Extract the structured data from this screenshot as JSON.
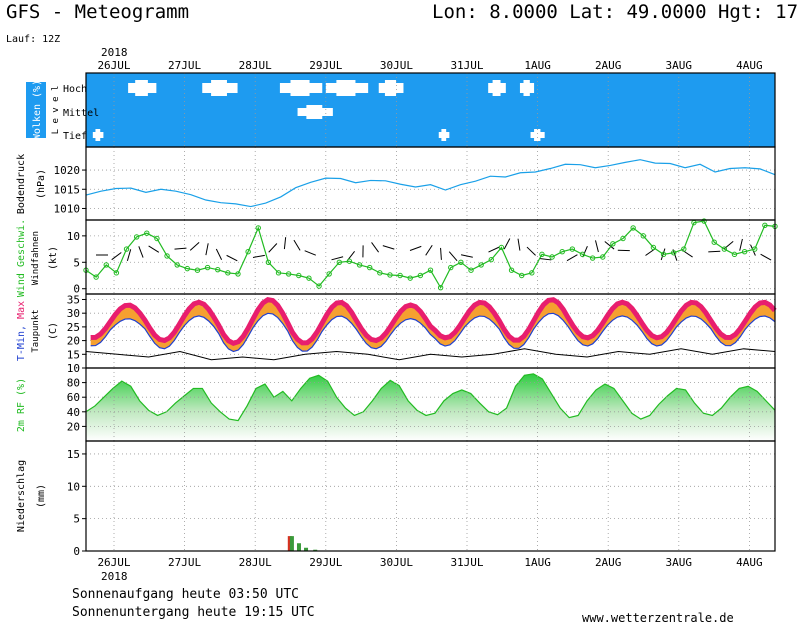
{
  "header": {
    "title": "GFS - Meteogramm",
    "location": "Lon: 8.0000  Lat: 49.0000  Hgt: 17",
    "run": "Lauf: 12Z"
  },
  "footer": {
    "sunrise": "Sonnenaufgang heute 03:50 UTC",
    "sunset": "Sonnenuntergang heute 19:15 UTC",
    "site": "www.wetterzentrale.de"
  },
  "colors": {
    "cloud_bg": "#1e9bf0",
    "pressure": "#1aa0e8",
    "wind": "#22bb22",
    "temp_hot": "#e81e6e",
    "temp_warm": "#f5a030",
    "dewpoint": "#000000",
    "tmin_line": "#2040d0",
    "rh": "#22bb22",
    "rain": "#3a9a3a",
    "rain_red": "#d83020"
  },
  "chart_data": {
    "type": "line",
    "x_ticks": [
      "26JUL",
      "27JUL",
      "28JUL",
      "29JUL",
      "30JUL",
      "31JUL",
      "1AUG",
      "2AUG",
      "3AUG",
      "4AUG"
    ],
    "year_label": "2018",
    "panels": [
      {
        "id": "clouds",
        "ylabel": "Wolken (%)",
        "ylabel2": "L e v e l",
        "levels": [
          "Hoch",
          "Mittel",
          "Tief"
        ],
        "cloud_patches": [
          {
            "level": "Hoch",
            "day_start": 0.2,
            "day_end": 0.6
          },
          {
            "level": "Hoch",
            "day_start": 1.25,
            "day_end": 1.75
          },
          {
            "level": "Hoch",
            "day_start": 2.35,
            "day_end": 2.95
          },
          {
            "level": "Hoch",
            "day_start": 3.0,
            "day_end": 3.6
          },
          {
            "level": "Hoch",
            "day_start": 3.75,
            "day_end": 4.1
          },
          {
            "level": "Hoch",
            "day_start": 5.3,
            "day_end": 5.55
          },
          {
            "level": "Hoch",
            "day_start": 5.75,
            "day_end": 5.95
          },
          {
            "level": "Mittel",
            "day_start": 2.6,
            "day_end": 3.1
          },
          {
            "level": "Tief",
            "day_start": -0.3,
            "day_end": -0.15
          },
          {
            "level": "Tief",
            "day_start": 4.6,
            "day_end": 4.75
          },
          {
            "level": "Tief",
            "day_start": 5.9,
            "day_end": 6.1
          }
        ]
      },
      {
        "id": "pressure",
        "ylabel": "Bodendruck",
        "ylabel2": "(hPa)",
        "yticks": [
          1010,
          1015,
          1020
        ],
        "ylim": [
          1007,
          1026
        ],
        "values": [
          1013.5,
          1014.5,
          1015.2,
          1015.3,
          1014.2,
          1015.0,
          1014.5,
          1013.6,
          1012.2,
          1011.5,
          1011.2,
          1010.5,
          1011.4,
          1013.0,
          1015.4,
          1016.8,
          1017.9,
          1017.8,
          1016.7,
          1017.3,
          1017.2,
          1016.3,
          1015.6,
          1016.2,
          1014.8,
          1016.2,
          1017.1,
          1018.4,
          1018.2,
          1019.3,
          1019.5,
          1020.4,
          1021.5,
          1021.4,
          1020.6,
          1021.2,
          1022.0,
          1022.7,
          1021.8,
          1021.7,
          1020.6,
          1021.5,
          1019.5,
          1020.4,
          1020.6,
          1020.3,
          1018.8
        ]
      },
      {
        "id": "wind",
        "ylabel": "Wind Geschwi.",
        "ylabel2": "Windfahnen",
        "ylabel3": "(kt)",
        "yticks": [
          0,
          5,
          10
        ],
        "ylim": [
          -1,
          13
        ],
        "values": [
          3.5,
          2.2,
          4.5,
          3.0,
          7.5,
          9.8,
          10.5,
          9.5,
          6.2,
          4.5,
          3.8,
          3.5,
          4.0,
          3.6,
          3.0,
          2.8,
          7.0,
          11.5,
          5.0,
          3.0,
          2.8,
          2.5,
          2.0,
          0.5,
          2.8,
          5.0,
          5.2,
          4.5,
          4.0,
          3.0,
          2.6,
          2.5,
          2.0,
          2.5,
          3.5,
          0.2,
          4.0,
          5.0,
          3.5,
          4.5,
          5.5,
          7.8,
          3.5,
          2.5,
          3.0,
          6.5,
          6.0,
          7.0,
          7.5,
          6.5,
          5.8,
          6.0,
          8.5,
          9.5,
          11.5,
          10.0,
          7.8,
          6.5,
          6.8,
          7.5,
          12.5,
          12.8,
          8.8,
          7.5,
          6.5,
          7.0,
          7.5,
          12.0,
          11.8
        ]
      },
      {
        "id": "temperature",
        "ylabel": "T-Min, Max",
        "ylabel2": "Taupunkt",
        "ylabel3": "(C)",
        "yticks": [
          10,
          15,
          20,
          25,
          30,
          35
        ],
        "ylim": [
          10,
          37
        ],
        "tmax": [
          33,
          34,
          35,
          34,
          33,
          34,
          35,
          34
        ],
        "tmin": [
          21,
          20,
          19,
          19,
          20,
          21,
          20,
          21
        ],
        "dewpoint": [
          16,
          15,
          14,
          16,
          13,
          14,
          13,
          15,
          16,
          15,
          13,
          15,
          14,
          15,
          17,
          15,
          14,
          16,
          15,
          17,
          15,
          17,
          16
        ]
      },
      {
        "id": "rh",
        "ylabel": "2m RF (%)",
        "yticks": [
          20,
          40,
          60,
          80
        ],
        "ylim": [
          0,
          100
        ],
        "values": [
          40,
          48,
          60,
          72,
          82,
          75,
          55,
          42,
          35,
          40,
          52,
          62,
          72,
          72,
          52,
          40,
          30,
          28,
          48,
          72,
          78,
          60,
          68,
          55,
          72,
          86,
          90,
          82,
          60,
          45,
          35,
          40,
          55,
          72,
          83,
          76,
          55,
          42,
          35,
          38,
          55,
          65,
          70,
          65,
          52,
          40,
          36,
          45,
          75,
          90,
          92,
          85,
          65,
          45,
          32,
          35,
          55,
          70,
          78,
          72,
          55,
          38,
          30,
          35,
          50,
          62,
          72,
          70,
          52,
          38,
          35,
          45,
          60,
          72,
          75,
          68,
          55,
          42
        ]
      },
      {
        "id": "precip",
        "ylabel": "Niederschlag",
        "ylabel2": "(mm)",
        "yticks": [
          0,
          5,
          10,
          15
        ],
        "ylim": [
          0,
          17
        ],
        "bars": [
          {
            "day": 2.49,
            "value": 2.3,
            "color": "red"
          },
          {
            "day": 2.52,
            "value": 2.3,
            "color": "green"
          },
          {
            "day": 2.62,
            "value": 1.2,
            "color": "green"
          },
          {
            "day": 2.72,
            "value": 0.5,
            "color": "green"
          },
          {
            "day": 2.85,
            "value": 0.2,
            "color": "green"
          }
        ]
      }
    ]
  }
}
